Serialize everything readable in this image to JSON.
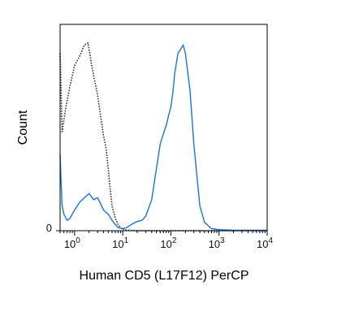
{
  "chart_data": {
    "type": "line",
    "title": "",
    "xlabel": "Human CD5 (L17F12) PerCP",
    "ylabel": "Count",
    "x_scale": "log",
    "xlim": [
      0.5,
      10000
    ],
    "ylim": [
      0,
      100
    ],
    "grid": false,
    "legend": "none",
    "x_tick_labels": [
      {
        "value": 1,
        "base": "10",
        "exp": "0"
      },
      {
        "value": 10,
        "base": "10",
        "exp": "1"
      },
      {
        "value": 100,
        "base": "10",
        "exp": "2"
      },
      {
        "value": 1000,
        "base": "10",
        "exp": "3"
      },
      {
        "value": 10000,
        "base": "10",
        "exp": "4"
      }
    ],
    "y_tick_labels": [
      {
        "value": 0,
        "label": "0"
      }
    ],
    "series": [
      {
        "style": "dotted",
        "color": "#333333",
        "x": [
          0.5,
          0.55,
          0.65,
          0.8,
          1.0,
          1.3,
          1.6,
          1.9,
          2.2,
          2.5,
          3.0,
          3.5,
          4.0,
          4.5,
          5.0,
          5.5,
          6.0,
          7.0,
          8.0,
          9.0,
          10,
          12,
          15,
          20,
          30,
          50,
          100,
          10000
        ],
        "y": [
          86,
          48,
          59,
          70,
          80,
          85,
          90,
          91,
          82,
          75,
          66,
          55,
          46,
          40,
          30,
          20,
          12,
          6,
          3,
          1.5,
          0.8,
          0.3,
          0.1,
          0,
          0,
          0,
          0,
          0
        ]
      },
      {
        "style": "solid",
        "color": "#1a73d9",
        "x": [
          0.5,
          0.52,
          0.55,
          0.6,
          0.7,
          0.8,
          1.0,
          1.3,
          1.6,
          2.0,
          2.5,
          3.0,
          3.5,
          4.0,
          5.0,
          6.0,
          7.0,
          8.0,
          10,
          12,
          15,
          20,
          25,
          30,
          40,
          50,
          60,
          70,
          80,
          90,
          100,
          110,
          120,
          140,
          160,
          180,
          200,
          250,
          300,
          400,
          500,
          700,
          1000,
          2000,
          10000
        ],
        "y": [
          37,
          26,
          12,
          8,
          5,
          6,
          10,
          14,
          16,
          18,
          15,
          16,
          13,
          10,
          8,
          5,
          3,
          1.5,
          1,
          1.5,
          3,
          4.5,
          5,
          7,
          15,
          30,
          42,
          47,
          51,
          56,
          60,
          67,
          76,
          86,
          88,
          90,
          86,
          68,
          42,
          12,
          4,
          1,
          0.5,
          0.2,
          0.2
        ]
      }
    ]
  }
}
